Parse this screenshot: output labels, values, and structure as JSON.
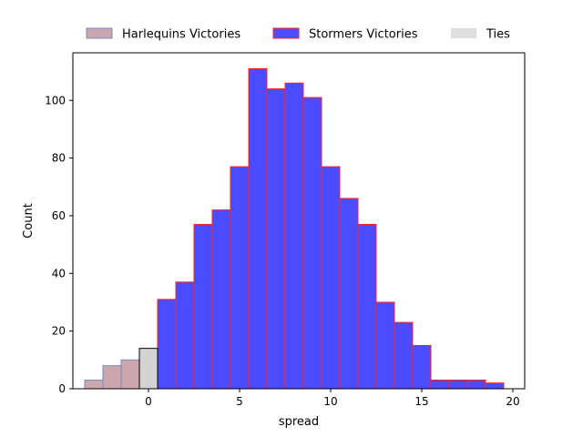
{
  "chart_data": {
    "type": "bar",
    "xlabel": "spread",
    "ylabel": "Count",
    "xlim": [
      -4.15,
      20.65
    ],
    "ylim": [
      0,
      116.5
    ],
    "x_ticks": [
      0,
      5,
      10,
      15,
      20
    ],
    "y_ticks": [
      0,
      20,
      40,
      60,
      80,
      100
    ],
    "bin_width": 1,
    "legend_position": "top-center-outside",
    "series": [
      {
        "name": "Harlequins Victories",
        "fill": "#8b3a4a",
        "fill_opacity": 0.45,
        "edge": "#7b8cc0",
        "bins": [
          {
            "x_start": -3.5,
            "count": 3
          },
          {
            "x_start": -2.5,
            "count": 8
          },
          {
            "x_start": -1.5,
            "count": 10
          }
        ]
      },
      {
        "name": "Stormers Victories",
        "fill": "#1010ff",
        "fill_opacity": 0.75,
        "edge": "#ff2020",
        "bins": [
          {
            "x_start": 0.5,
            "count": 31
          },
          {
            "x_start": 1.5,
            "count": 37
          },
          {
            "x_start": 2.5,
            "count": 57
          },
          {
            "x_start": 3.5,
            "count": 62
          },
          {
            "x_start": 4.5,
            "count": 77
          },
          {
            "x_start": 5.5,
            "count": 111
          },
          {
            "x_start": 6.5,
            "count": 104
          },
          {
            "x_start": 7.5,
            "count": 106
          },
          {
            "x_start": 8.5,
            "count": 101
          },
          {
            "x_start": 9.5,
            "count": 77
          },
          {
            "x_start": 10.5,
            "count": 66
          },
          {
            "x_start": 11.5,
            "count": 57
          },
          {
            "x_start": 12.5,
            "count": 30
          },
          {
            "x_start": 13.5,
            "count": 23
          },
          {
            "x_start": 14.5,
            "count": 15
          },
          {
            "x_start": 15.5,
            "count": 3
          },
          {
            "x_start": 16.5,
            "count": 3
          },
          {
            "x_start": 17.5,
            "count": 3
          },
          {
            "x_start": 18.5,
            "count": 2
          }
        ]
      },
      {
        "name": "Ties",
        "fill": "#d3d3d3",
        "fill_opacity": 1,
        "edge": "#000000",
        "bins": [
          {
            "x_start": -0.5,
            "count": 14
          }
        ]
      }
    ]
  }
}
